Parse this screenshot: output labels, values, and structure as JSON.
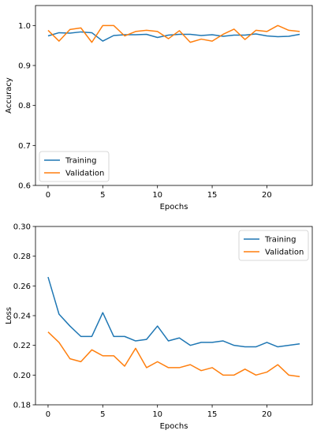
{
  "chart_data": [
    {
      "type": "line",
      "xlabel": "Epochs",
      "ylabel": "Accuracy",
      "xlim": [
        -1.15,
        24.15
      ],
      "ylim": [
        0.6,
        1.05
      ],
      "xticks": [
        0,
        5,
        10,
        15,
        20
      ],
      "yticks": [
        0.6,
        0.7,
        0.8,
        0.9,
        1.0
      ],
      "ytick_labels": [
        "0.6",
        "0.7",
        "0.8",
        "0.9",
        "1.0"
      ],
      "legend_position": "lower-left",
      "x": [
        0,
        1,
        2,
        3,
        4,
        5,
        6,
        7,
        8,
        9,
        10,
        11,
        12,
        13,
        14,
        15,
        16,
        17,
        18,
        19,
        20,
        21,
        22,
        23
      ],
      "series": [
        {
          "name": "Training",
          "color": "#1f77b4",
          "values": [
            0.974,
            0.982,
            0.981,
            0.984,
            0.982,
            0.961,
            0.975,
            0.977,
            0.977,
            0.978,
            0.97,
            0.976,
            0.978,
            0.978,
            0.975,
            0.977,
            0.973,
            0.976,
            0.976,
            0.979,
            0.974,
            0.972,
            0.973,
            0.978
          ]
        },
        {
          "name": "Validation",
          "color": "#ff7f0e",
          "values": [
            0.988,
            0.961,
            0.99,
            0.994,
            0.958,
            1.0,
            1.0,
            0.974,
            0.985,
            0.988,
            0.985,
            0.967,
            0.987,
            0.958,
            0.966,
            0.961,
            0.978,
            0.991,
            0.965,
            0.988,
            0.985,
            1.0,
            0.988,
            0.985
          ]
        }
      ]
    },
    {
      "type": "line",
      "xlabel": "Epochs",
      "ylabel": "Loss",
      "xlim": [
        -1.15,
        24.15
      ],
      "ylim": [
        0.18,
        0.3
      ],
      "xticks": [
        0,
        5,
        10,
        15,
        20
      ],
      "yticks": [
        0.18,
        0.2,
        0.22,
        0.24,
        0.26,
        0.28,
        0.3
      ],
      "ytick_labels": [
        "0.18",
        "0.20",
        "0.22",
        "0.24",
        "0.26",
        "0.28",
        "0.30"
      ],
      "legend_position": "upper-right",
      "x": [
        0,
        1,
        2,
        3,
        4,
        5,
        6,
        7,
        8,
        9,
        10,
        11,
        12,
        13,
        14,
        15,
        16,
        17,
        18,
        19,
        20,
        21,
        22,
        23
      ],
      "series": [
        {
          "name": "Training",
          "color": "#1f77b4",
          "values": [
            0.266,
            0.241,
            0.233,
            0.226,
            0.226,
            0.242,
            0.226,
            0.226,
            0.223,
            0.224,
            0.233,
            0.223,
            0.225,
            0.22,
            0.222,
            0.222,
            0.223,
            0.22,
            0.219,
            0.219,
            0.222,
            0.219,
            0.22,
            0.221
          ]
        },
        {
          "name": "Validation",
          "color": "#ff7f0e",
          "values": [
            0.229,
            0.222,
            0.211,
            0.209,
            0.217,
            0.213,
            0.213,
            0.206,
            0.218,
            0.205,
            0.209,
            0.205,
            0.205,
            0.207,
            0.203,
            0.205,
            0.2,
            0.2,
            0.204,
            0.2,
            0.202,
            0.207,
            0.2,
            0.199
          ]
        }
      ]
    }
  ]
}
